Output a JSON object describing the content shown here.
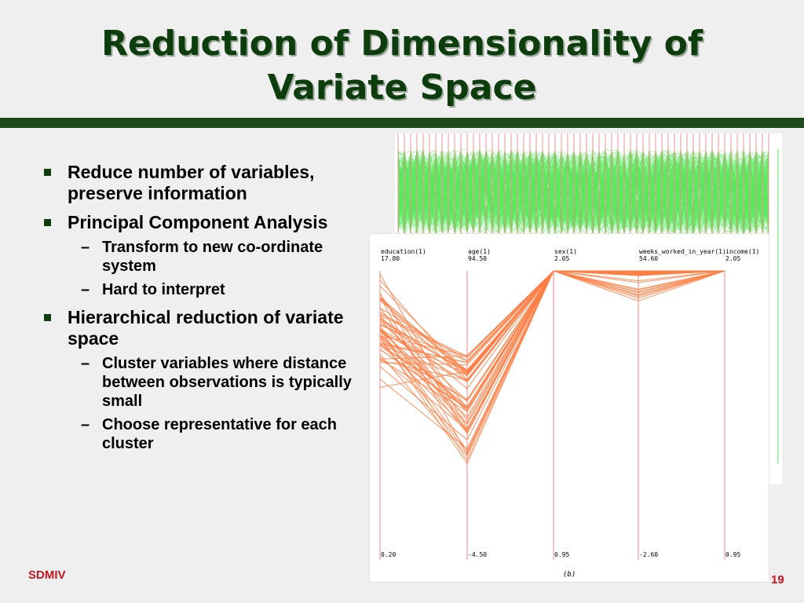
{
  "slide": {
    "title_line1": "Reduction of Dimensionality of",
    "title_line2": "Variate Space",
    "bullets": [
      {
        "text": "Reduce number of variables, preserve information",
        "subs": []
      },
      {
        "text": "Principal Component Analysis",
        "subs": [
          "Transform to new co-ordinate system",
          "Hard to interpret"
        ]
      },
      {
        "text": "Hierarchical reduction of variate space",
        "subs": [
          "Cluster variables where distance between observations is typically small",
          "Choose representative for each cluster"
        ]
      }
    ],
    "dash_glyph": "–",
    "footer_left": "SDMIV",
    "page_number": "19"
  },
  "colors": {
    "title": "#0d3d0d",
    "rule": "#1d4a1b",
    "footer": "#c8141e",
    "front_lines": "#ff7f45",
    "back_lines": "#5fe85f",
    "axis": "#ee8a8a"
  },
  "chart_data": {
    "type": "parallel-coordinates",
    "caption": "(b)",
    "axes": [
      {
        "name": "education(1)",
        "max": "17.80",
        "min": "0.20"
      },
      {
        "name": "age(1)",
        "max": "94.50",
        "min": "-4.50"
      },
      {
        "name": "sex(1)",
        "max": "2.05",
        "min": "0.95"
      },
      {
        "name": "weeks_worked_in_year(1)",
        "max": "54.60",
        "min": "-2.60"
      },
      {
        "name": "income(1)",
        "max": "2.05",
        "min": "0.95"
      }
    ]
  }
}
